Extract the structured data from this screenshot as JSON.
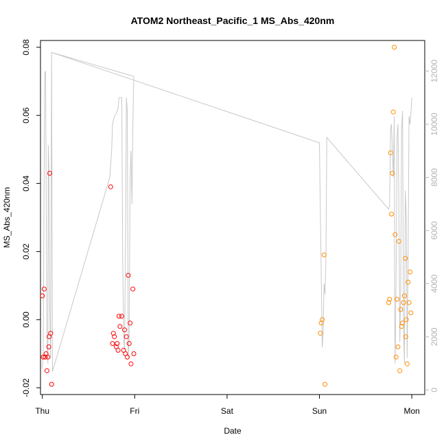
{
  "chart_data": {
    "type": "scatter",
    "title": "ATOM2 Northeast_Pacific_1 MS_Abs_420nm",
    "xlabel": "Date",
    "ylabel": "MS_Abs_420nm",
    "x_ticks": [
      "Thu",
      "Fri",
      "Sat",
      "Sun",
      "Mon"
    ],
    "xlim": [
      -0.02,
      4.14
    ],
    "ylim": [
      -0.022,
      0.082
    ],
    "y_ticks": [
      -0.02,
      0.0,
      0.02,
      0.04,
      0.06,
      0.08
    ],
    "y_tick_labels": [
      "-0.02",
      "0.00",
      "0.02",
      "0.04",
      "0.06",
      "0.08"
    ],
    "y2_ticks": [
      0,
      2000,
      4000,
      6000,
      8000,
      10000,
      12000
    ],
    "y2_tick_labels": [
      "0",
      "2000",
      "4000",
      "6000",
      "8000",
      "10000",
      "12000"
    ],
    "y2lim": [
      -170,
      13150
    ],
    "grid": false,
    "series": [
      {
        "color": "#ff0000",
        "marker": "open-circle",
        "points": [
          [
            0.0,
            0.007
          ],
          [
            0.01,
            -0.011
          ],
          [
            0.02,
            0.009
          ],
          [
            0.03,
            -0.011
          ],
          [
            0.04,
            -0.01
          ],
          [
            0.05,
            -0.015
          ],
          [
            0.06,
            -0.011
          ],
          [
            0.07,
            -0.008
          ],
          [
            0.075,
            -0.005
          ],
          [
            0.08,
            0.043
          ],
          [
            0.09,
            -0.004
          ],
          [
            0.1,
            -0.019
          ],
          [
            0.74,
            0.039
          ],
          [
            0.76,
            -0.007
          ],
          [
            0.77,
            -0.004
          ],
          [
            0.78,
            -0.005
          ],
          [
            0.8,
            -0.008
          ],
          [
            0.81,
            -0.007
          ],
          [
            0.82,
            -0.009
          ],
          [
            0.83,
            0.001
          ],
          [
            0.84,
            -0.002
          ],
          [
            0.86,
            0.001
          ],
          [
            0.88,
            -0.009
          ],
          [
            0.89,
            -0.003
          ],
          [
            0.9,
            -0.01
          ],
          [
            0.91,
            -0.005
          ],
          [
            0.92,
            -0.011
          ],
          [
            0.93,
            0.013
          ],
          [
            0.94,
            -0.007
          ],
          [
            0.95,
            -0.001
          ],
          [
            0.96,
            -0.013
          ],
          [
            0.98,
            0.009
          ],
          [
            0.99,
            -0.01
          ]
        ]
      },
      {
        "color": "#ff8c00",
        "marker": "open-circle",
        "points": [
          [
            3.01,
            -0.004
          ],
          [
            3.02,
            -0.001
          ],
          [
            3.03,
            0.0
          ],
          [
            3.05,
            0.019
          ],
          [
            3.06,
            -0.019
          ],
          [
            3.75,
            0.005
          ],
          [
            3.76,
            0.006
          ],
          [
            3.77,
            0.049
          ],
          [
            3.78,
            0.031
          ],
          [
            3.79,
            0.043
          ],
          [
            3.8,
            0.061
          ],
          [
            3.81,
            0.08
          ],
          [
            3.82,
            0.025
          ],
          [
            3.83,
            -0.011
          ],
          [
            3.84,
            0.006
          ],
          [
            3.85,
            -0.008
          ],
          [
            3.86,
            0.023
          ],
          [
            3.87,
            -0.015
          ],
          [
            3.88,
            0.003
          ],
          [
            3.89,
            -0.002
          ],
          [
            3.9,
            -0.001
          ],
          [
            3.91,
            0.005
          ],
          [
            3.92,
            0.007
          ],
          [
            3.93,
            0.018
          ],
          [
            3.935,
            -0.005
          ],
          [
            3.94,
            0.0
          ],
          [
            3.95,
            -0.013
          ],
          [
            3.96,
            0.011
          ],
          [
            3.97,
            0.005
          ],
          [
            3.98,
            0.014
          ],
          [
            3.99,
            0.002
          ]
        ]
      },
      {
        "color": "#c8c8c8",
        "marker": "line",
        "axis": "right",
        "points": [
          [
            0.0,
            800
          ],
          [
            0.01,
            1500
          ],
          [
            0.025,
            11900
          ],
          [
            0.035,
            12000
          ],
          [
            0.05,
            2000
          ],
          [
            0.06,
            1000
          ],
          [
            0.065,
            9200
          ],
          [
            0.07,
            8500
          ],
          [
            0.08,
            3000
          ],
          [
            0.09,
            1200
          ],
          [
            0.1,
            12700
          ],
          [
            0.11,
            700
          ],
          [
            0.73,
            8000
          ],
          [
            0.75,
            9000
          ],
          [
            0.76,
            10000
          ],
          [
            0.78,
            10300
          ],
          [
            0.8,
            10400
          ],
          [
            0.82,
            10600
          ],
          [
            0.83,
            11000
          ],
          [
            0.86,
            11000
          ],
          [
            0.87,
            5000
          ],
          [
            0.88,
            2000
          ],
          [
            0.89,
            1500
          ],
          [
            0.9,
            5000
          ],
          [
            0.91,
            11000
          ],
          [
            0.92,
            10500
          ],
          [
            0.93,
            1200
          ],
          [
            0.94,
            2000
          ],
          [
            0.95,
            8000
          ],
          [
            0.96,
            9000
          ],
          [
            0.97,
            7000
          ],
          [
            0.98,
            10000
          ],
          [
            0.99,
            11800
          ],
          [
            0.1,
            12700
          ],
          [
            3.0,
            9300
          ],
          [
            3.03,
            1600
          ],
          [
            3.04,
            2100
          ],
          [
            3.05,
            4000
          ],
          [
            3.06,
            3600
          ],
          [
            3.07,
            4900
          ],
          [
            3.08,
            9500
          ],
          [
            3.75,
            6800
          ],
          [
            3.76,
            7000
          ],
          [
            3.77,
            9800
          ],
          [
            3.78,
            10000
          ],
          [
            3.79,
            9000
          ],
          [
            3.8,
            8000
          ],
          [
            3.81,
            10300
          ],
          [
            3.815,
            2400
          ],
          [
            3.82,
            1000
          ],
          [
            3.83,
            4500
          ],
          [
            3.84,
            9500
          ],
          [
            3.85,
            10000
          ],
          [
            3.86,
            7000
          ],
          [
            3.87,
            1800
          ],
          [
            3.88,
            3800
          ],
          [
            3.89,
            9800
          ],
          [
            3.9,
            10500
          ],
          [
            3.91,
            2500
          ],
          [
            3.92,
            1000
          ],
          [
            3.93,
            7500
          ],
          [
            3.94,
            6500
          ],
          [
            3.95,
            1200
          ],
          [
            3.96,
            5000
          ],
          [
            3.97,
            10300
          ],
          [
            3.98,
            10000
          ],
          [
            3.99,
            10400
          ],
          [
            4.0,
            11000
          ]
        ]
      }
    ]
  }
}
